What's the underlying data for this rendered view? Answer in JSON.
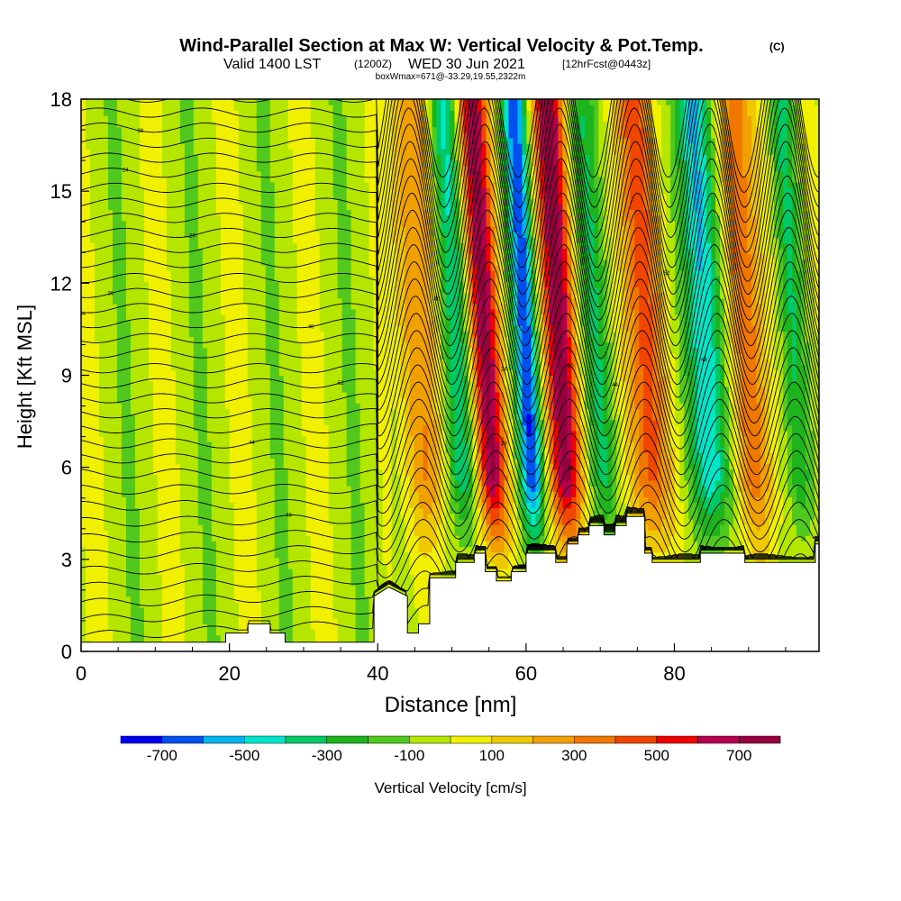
{
  "chart_data": {
    "type": "heatmap",
    "title": "Wind-Parallel Section at Max W: Vertical Velocity & Pot.Temp.",
    "title_mark": "(C)",
    "subtitle": {
      "prefix": "Valid 1400 LST",
      "utc": "(1200Z)",
      "date": "WED 30 Jun 2021",
      "forecast": "[12hrFcst@0443z]"
    },
    "subtitle2": "boxWmax=671@-33.29,19.55,2322m",
    "xlabel": "Distance [nm]",
    "ylabel": "Height [Kft MSL]",
    "xlim": [
      0,
      99.5
    ],
    "ylim": [
      0,
      18
    ],
    "x_ticks": [
      "0",
      "20",
      "40",
      "60",
      "80"
    ],
    "x_tick_values": [
      0,
      20,
      40,
      60,
      80
    ],
    "y_ticks": [
      "0",
      "3",
      "6",
      "9",
      "12",
      "15",
      "18"
    ],
    "y_tick_values": [
      0,
      3,
      6,
      9,
      12,
      15,
      18
    ],
    "colorbar": {
      "label": "Vertical Velocity [cm/s]",
      "boundaries": [
        -800,
        -700,
        -600,
        -500,
        -400,
        -300,
        -200,
        -100,
        0,
        100,
        200,
        300,
        400,
        500,
        600,
        700,
        800
      ],
      "colors": [
        "#0000f0",
        "#0050f0",
        "#00b4f0",
        "#00e6c8",
        "#00c864",
        "#1eb41e",
        "#50c81e",
        "#b4e600",
        "#f0f000",
        "#f0c800",
        "#f0a000",
        "#f07800",
        "#f04600",
        "#f00000",
        "#b40050",
        "#96003c"
      ],
      "tick_labels": [
        "-700",
        "-500",
        "-300",
        "-100",
        "100",
        "300",
        "500",
        "700"
      ],
      "tick_values": [
        -700,
        -500,
        -300,
        -100,
        100,
        300,
        500,
        700
      ]
    },
    "updraft_bands": [
      {
        "x_low": 44,
        "x_high": 50,
        "peak": 320
      },
      {
        "x_low": 53,
        "x_high": 58,
        "peak": 720
      },
      {
        "x_low": 63,
        "x_high": 68,
        "peak": 780
      },
      {
        "x_low": 74,
        "x_high": 80,
        "peak": 450
      },
      {
        "x_low": 88,
        "x_high": 94,
        "peak": 350
      }
    ],
    "downdraft_bands": [
      {
        "x_low": 49,
        "x_high": 54,
        "peak": -420
      },
      {
        "x_low": 59,
        "x_high": 63,
        "peak": -720
      },
      {
        "x_low": 68,
        "x_high": 73,
        "peak": -300
      },
      {
        "x_low": 82,
        "x_high": 88,
        "peak": -520
      },
      {
        "x_low": 95,
        "x_high": 99,
        "peak": -320
      }
    ],
    "terrain": [
      [
        0,
        0.3
      ],
      [
        19.5,
        0.3
      ],
      [
        19.5,
        0.6
      ],
      [
        22.5,
        0.6
      ],
      [
        22.5,
        0.9
      ],
      [
        25.5,
        0.9
      ],
      [
        25.5,
        0.6
      ],
      [
        27.5,
        0.6
      ],
      [
        27.5,
        0.3
      ],
      [
        39.5,
        0.3
      ],
      [
        39.5,
        1.8
      ],
      [
        41.5,
        2.1
      ],
      [
        44,
        1.8
      ],
      [
        44,
        0.6
      ],
      [
        45.5,
        0.6
      ],
      [
        45.5,
        0.9
      ],
      [
        47,
        0.9
      ],
      [
        47,
        2.4
      ],
      [
        50.5,
        2.4
      ],
      [
        50.5,
        2.9
      ],
      [
        53,
        2.9
      ],
      [
        53,
        3.2
      ],
      [
        54.5,
        3.2
      ],
      [
        54.5,
        2.6
      ],
      [
        56,
        2.6
      ],
      [
        56,
        2.3
      ],
      [
        58,
        2.3
      ],
      [
        58,
        2.6
      ],
      [
        60,
        2.6
      ],
      [
        60,
        3.2
      ],
      [
        64,
        3.2
      ],
      [
        64,
        2.9
      ],
      [
        65.5,
        2.9
      ],
      [
        65.5,
        3.5
      ],
      [
        67,
        3.5
      ],
      [
        67,
        3.8
      ],
      [
        68.5,
        3.8
      ],
      [
        68.5,
        4.1
      ],
      [
        70.5,
        4.1
      ],
      [
        70.5,
        3.8
      ],
      [
        72,
        3.8
      ],
      [
        72,
        4.1
      ],
      [
        73.5,
        4.1
      ],
      [
        73.5,
        4.4
      ],
      [
        76,
        4.4
      ],
      [
        76,
        3.2
      ],
      [
        77,
        3.2
      ],
      [
        77,
        2.9
      ],
      [
        83.5,
        2.9
      ],
      [
        83.5,
        3.2
      ],
      [
        89.5,
        3.2
      ],
      [
        89.5,
        2.9
      ],
      [
        99,
        2.9
      ],
      [
        99,
        3.5
      ],
      [
        99.5,
        3.5
      ]
    ],
    "isentrope_count": 36,
    "isentrope_labels": [
      "24",
      "28",
      "20",
      "36",
      "40",
      "44",
      "48",
      "52"
    ]
  }
}
